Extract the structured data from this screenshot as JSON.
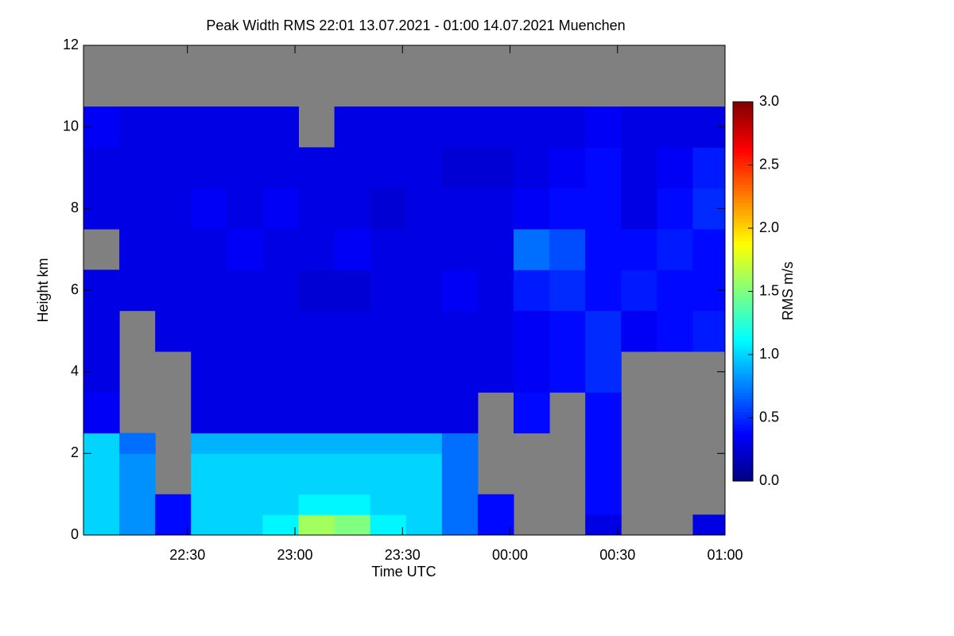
{
  "chart_data": {
    "type": "heatmap",
    "title": "Peak Width RMS   22:01 13.07.2021 - 01:00 14.07.2021 Muenchen",
    "x_label": "Time UTC",
    "y_label": "Height km",
    "colorbar_label": "RMS m/s",
    "colormap": "jet",
    "nodata_color": "#808080",
    "xlim": [
      "2021-07-13T22:01",
      "2021-07-14T01:00"
    ],
    "xticks": [
      {
        "value": "2021-07-13T22:30",
        "label": "22:30"
      },
      {
        "value": "2021-07-13T23:00",
        "label": "23:00"
      },
      {
        "value": "2021-07-13T23:30",
        "label": "23:30"
      },
      {
        "value": "2021-07-14T00:00",
        "label": "00:00"
      },
      {
        "value": "2021-07-14T00:30",
        "label": "00:30"
      },
      {
        "value": "2021-07-14T01:00",
        "label": "01:00"
      }
    ],
    "ylim": [
      0,
      12
    ],
    "yticks": [
      0,
      2,
      4,
      6,
      8,
      10,
      12
    ],
    "zlim": [
      0,
      3
    ],
    "zticks": [
      {
        "value": 0,
        "label": "0.0"
      },
      {
        "value": 0.5,
        "label": "0.5"
      },
      {
        "value": 1,
        "label": "1.0"
      },
      {
        "value": 1.5,
        "label": "1.5"
      },
      {
        "value": 2,
        "label": "2.0"
      },
      {
        "value": 2.5,
        "label": "2.5"
      },
      {
        "value": 3,
        "label": "3.0"
      }
    ],
    "x_bins": [
      "2021-07-13T22:01",
      "2021-07-13T22:11",
      "2021-07-13T22:21",
      "2021-07-13T22:31",
      "2021-07-13T22:41",
      "2021-07-13T22:51",
      "2021-07-13T23:01",
      "2021-07-13T23:11",
      "2021-07-13T23:21",
      "2021-07-13T23:31",
      "2021-07-13T23:41",
      "2021-07-13T23:51",
      "2021-07-14T00:01",
      "2021-07-14T00:11",
      "2021-07-14T00:21",
      "2021-07-14T00:31",
      "2021-07-14T00:41",
      "2021-07-14T00:51",
      "2021-07-14T01:00"
    ],
    "y_bins": [
      0,
      0.5,
      1,
      1.5,
      2,
      2.5,
      3.5,
      4.5,
      5.5,
      6.5,
      7.5,
      8.5,
      9.5,
      10.5,
      12
    ],
    "values": [
      [
        1.0,
        0.8,
        0.4,
        1.0,
        1.0,
        1.1,
        1.6,
        1.5,
        1.1,
        1.0,
        0.7,
        0.4,
        null,
        null,
        0.3,
        null,
        null,
        0.3
      ],
      [
        1.0,
        0.8,
        0.4,
        1.0,
        1.0,
        1.0,
        1.1,
        1.1,
        1.0,
        1.0,
        0.7,
        0.4,
        null,
        null,
        0.4,
        null,
        null,
        null
      ],
      [
        1.0,
        0.8,
        null,
        1.0,
        1.0,
        1.0,
        1.0,
        1.0,
        1.0,
        1.0,
        0.7,
        null,
        null,
        null,
        0.4,
        null,
        null,
        null
      ],
      [
        1.0,
        0.8,
        null,
        1.0,
        1.0,
        1.0,
        1.0,
        1.0,
        1.0,
        1.0,
        0.7,
        null,
        null,
        null,
        0.4,
        null,
        null,
        null
      ],
      [
        1.0,
        0.7,
        null,
        0.9,
        0.9,
        0.9,
        0.9,
        0.9,
        0.9,
        0.9,
        0.7,
        null,
        null,
        null,
        0.4,
        null,
        null,
        null
      ],
      [
        0.35,
        null,
        null,
        0.3,
        0.3,
        0.3,
        0.3,
        0.3,
        0.3,
        0.3,
        0.3,
        null,
        0.4,
        null,
        0.4,
        null,
        null,
        null
      ],
      [
        0.3,
        null,
        null,
        0.3,
        0.3,
        0.3,
        0.3,
        0.3,
        0.3,
        0.3,
        0.3,
        0.3,
        0.35,
        0.4,
        0.5,
        null,
        null,
        null
      ],
      [
        0.3,
        null,
        0.3,
        0.3,
        0.3,
        0.3,
        0.3,
        0.3,
        0.3,
        0.3,
        0.3,
        0.3,
        0.35,
        0.4,
        0.5,
        0.35,
        0.4,
        0.45
      ],
      [
        0.3,
        0.3,
        0.3,
        0.3,
        0.3,
        0.3,
        0.25,
        0.25,
        0.3,
        0.3,
        0.35,
        0.3,
        0.45,
        0.5,
        0.4,
        0.45,
        0.4,
        0.4
      ],
      [
        null,
        0.3,
        0.3,
        0.3,
        0.35,
        0.3,
        0.3,
        0.35,
        0.3,
        0.3,
        0.3,
        0.3,
        0.7,
        0.6,
        0.4,
        0.4,
        0.45,
        0.4
      ],
      [
        0.3,
        0.3,
        0.3,
        0.35,
        0.3,
        0.35,
        0.3,
        0.3,
        0.25,
        0.3,
        0.3,
        0.3,
        0.35,
        0.4,
        0.4,
        0.3,
        0.4,
        0.5
      ],
      [
        0.3,
        0.3,
        0.3,
        0.3,
        0.3,
        0.3,
        0.3,
        0.3,
        0.3,
        0.3,
        0.25,
        0.25,
        0.3,
        0.35,
        0.4,
        0.3,
        0.35,
        0.45
      ],
      [
        0.35,
        0.3,
        0.3,
        0.3,
        0.3,
        0.3,
        null,
        0.3,
        0.3,
        0.3,
        0.3,
        0.3,
        0.3,
        0.3,
        0.35,
        0.3,
        0.3,
        0.3
      ],
      [
        null,
        null,
        null,
        null,
        null,
        null,
        null,
        null,
        null,
        null,
        null,
        null,
        null,
        null,
        null,
        null,
        null,
        null
      ]
    ]
  }
}
